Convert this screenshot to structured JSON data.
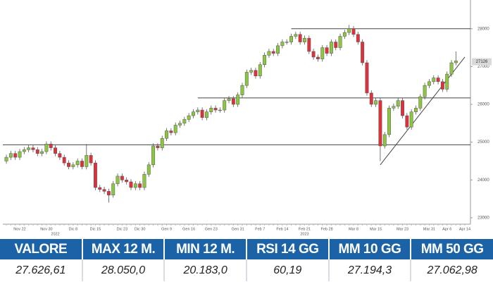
{
  "chart_data": {
    "type": "candlestick",
    "categories": [
      null,
      null,
      null,
      "Nov 22",
      null,
      null,
      null,
      null,
      null,
      "Nov 30",
      null,
      null,
      null,
      null,
      null,
      "Dic 8",
      null,
      null,
      null,
      null,
      "Dic 15",
      null,
      null,
      null,
      null,
      null,
      "Dic 23",
      null,
      null,
      null,
      "Dic 30",
      null,
      null,
      null,
      null,
      null,
      "Gen 9",
      null,
      null,
      null,
      null,
      "Gen 16",
      null,
      null,
      null,
      null,
      "Gen 23",
      null,
      null,
      null,
      null,
      null,
      "Gen 31",
      null,
      null,
      null,
      null,
      "Feb 7",
      null,
      null,
      null,
      null,
      "Feb 14",
      null,
      null,
      null,
      null,
      "Feb 21",
      null,
      null,
      null,
      null,
      "Feb 28",
      null,
      null,
      null,
      null,
      null,
      "Mar 8",
      null,
      null,
      null,
      null,
      "Mar 15",
      null,
      null,
      null,
      null,
      null,
      "Mar 23",
      null,
      null,
      null,
      null,
      null,
      "Mar 31",
      null,
      null,
      null,
      "Apr 6",
      null,
      null,
      null,
      "Apr 14"
    ],
    "year_labels": [
      {
        "at": 11,
        "label": "2022"
      },
      {
        "at": 67,
        "label": "2023"
      }
    ],
    "open": [
      24500,
      24600,
      24700,
      24600,
      24750,
      24800,
      24850,
      24800,
      24700,
      24750,
      24950,
      24850,
      24700,
      24600,
      24450,
      24350,
      24400,
      24500,
      24350,
      24650,
      24450,
      23800,
      23750,
      23700,
      23600,
      23900,
      24100,
      24000,
      23950,
      23800,
      23900,
      23800,
      24150,
      24400,
      24900,
      24850,
      25100,
      25300,
      25250,
      25450,
      25500,
      25600,
      25700,
      25800,
      25850,
      25650,
      25800,
      25900,
      25850,
      25850,
      26100,
      26150,
      26000,
      26250,
      26500,
      26850,
      26900,
      26750,
      27050,
      27300,
      27400,
      27350,
      27550,
      27650,
      27650,
      27800,
      27850,
      27650,
      27750,
      27400,
      27250,
      27200,
      27500,
      27350,
      27650,
      27500,
      27800,
      27900,
      28000,
      27850,
      27650,
      27100,
      26300,
      26000,
      26100,
      24900,
      25200,
      25900,
      25950,
      26100,
      25700,
      25400,
      25800,
      25900,
      26200,
      26500,
      26600,
      26700,
      26600,
      26400,
      26800,
      27100,
      null,
      null
    ],
    "high": [
      24670,
      24770,
      24770,
      24820,
      24870,
      24920,
      24920,
      24870,
      24820,
      25020,
      25020,
      24920,
      24770,
      24670,
      24520,
      24470,
      24570,
      24570,
      24950,
      24720,
      24520,
      23870,
      23820,
      23770,
      23970,
      24170,
      24170,
      24070,
      24020,
      23970,
      23970,
      24220,
      24470,
      24970,
      24970,
      25170,
      25370,
      25370,
      25520,
      25570,
      25670,
      25770,
      25870,
      25920,
      25920,
      25870,
      25970,
      25970,
      25920,
      26170,
      26220,
      26220,
      26320,
      26570,
      26920,
      26970,
      26970,
      27120,
      27370,
      27470,
      27470,
      27620,
      27720,
      27720,
      27870,
      27920,
      27920,
      27820,
      27820,
      27470,
      27320,
      27570,
      27570,
      27720,
      27720,
      27870,
      27970,
      28100,
      28070,
      27920,
      27720,
      27170,
      26370,
      26170,
      26170,
      25270,
      25970,
      26020,
      26170,
      26170,
      25770,
      25870,
      25970,
      26270,
      26570,
      26670,
      26770,
      26770,
      26670,
      26870,
      27170,
      27400,
      null,
      null
    ],
    "low": [
      24430,
      24530,
      24530,
      24530,
      24680,
      24730,
      24730,
      24630,
      24630,
      24680,
      24780,
      24630,
      24530,
      24380,
      24280,
      24280,
      24330,
      24280,
      24280,
      24380,
      23730,
      23680,
      23630,
      23400,
      23530,
      23830,
      23930,
      23880,
      23730,
      23730,
      23730,
      23730,
      24080,
      24330,
      24780,
      24780,
      25030,
      25180,
      25180,
      25380,
      25430,
      25530,
      25630,
      25730,
      25580,
      25580,
      25730,
      25780,
      25780,
      25780,
      26030,
      25930,
      25930,
      26180,
      26430,
      26780,
      26680,
      26680,
      26980,
      27230,
      27280,
      27280,
      27480,
      27580,
      27580,
      27730,
      27580,
      27580,
      27330,
      27180,
      27130,
      27130,
      27280,
      27280,
      27430,
      27430,
      27730,
      27830,
      27780,
      27580,
      27030,
      26230,
      25930,
      25930,
      24500,
      24830,
      25130,
      25830,
      25880,
      25630,
      25330,
      25330,
      25730,
      25830,
      26130,
      26430,
      26530,
      26530,
      26330,
      26330,
      26730,
      27030,
      null,
      null
    ],
    "close": [
      24600,
      24700,
      24600,
      24750,
      24800,
      24850,
      24800,
      24700,
      24750,
      24950,
      24850,
      24700,
      24600,
      24450,
      24350,
      24400,
      24500,
      24350,
      24650,
      24450,
      23800,
      23750,
      23700,
      23600,
      23900,
      24100,
      24000,
      23950,
      23800,
      23900,
      23800,
      24150,
      24400,
      24900,
      24850,
      25100,
      25300,
      25250,
      25450,
      25500,
      25600,
      25700,
      25800,
      25850,
      25650,
      25800,
      25900,
      25850,
      25850,
      26100,
      26150,
      26000,
      26250,
      26500,
      26850,
      26900,
      26750,
      27050,
      27300,
      27400,
      27350,
      27550,
      27650,
      27650,
      27800,
      27850,
      27650,
      27750,
      27400,
      27250,
      27200,
      27500,
      27350,
      27650,
      27500,
      27800,
      27900,
      28000,
      27850,
      27650,
      27100,
      26300,
      26000,
      26100,
      24900,
      25200,
      25900,
      25950,
      26100,
      25700,
      25400,
      25800,
      25900,
      26200,
      26500,
      26600,
      26700,
      26600,
      26400,
      26800,
      27100,
      27150,
      null,
      null
    ],
    "up_color": "#8cc63f",
    "down_color": "#e0303c",
    "ylim": [
      22830,
      28760
    ],
    "yticks": [
      23000,
      24000,
      25000,
      26000,
      27000,
      28000
    ],
    "last_price": 27126,
    "levels": [
      {
        "value": 24930,
        "from": 0
      },
      {
        "value": 26170,
        "from": 43
      },
      {
        "value": 28000,
        "from": 64
      }
    ],
    "trendline": {
      "x": [
        84,
        103
      ],
      "y": [
        24400,
        27250
      ]
    }
  },
  "table": {
    "headers": [
      "VALORE",
      "MAX 12 M.",
      "MIN 12 M.",
      "RSI 14 GG",
      "MM 10 GG",
      "MM 50 GG"
    ],
    "rows": [
      [
        "27.626,61",
        "28.050,0",
        "20.183,0",
        "60,19",
        "27.194,3",
        "27.062,98"
      ]
    ]
  }
}
